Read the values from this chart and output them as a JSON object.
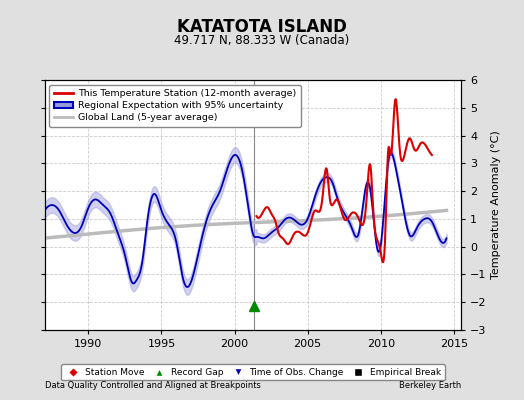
{
  "title": "KATATOTA ISLAND",
  "subtitle": "49.717 N, 88.333 W (Canada)",
  "ylabel": "Temperature Anomaly (°C)",
  "xlabel_left": "Data Quality Controlled and Aligned at Breakpoints",
  "xlabel_right": "Berkeley Earth",
  "ylim": [
    -3,
    6
  ],
  "xlim": [
    1987.0,
    2015.5
  ],
  "yticks": [
    -3,
    -2,
    -1,
    0,
    1,
    2,
    3,
    4,
    5,
    6
  ],
  "xticks": [
    1990,
    1995,
    2000,
    2005,
    2010,
    2015
  ],
  "bg_color": "#e0e0e0",
  "plot_bg_color": "#ffffff",
  "grid_color": "#cccccc",
  "blue_line_color": "#0000bb",
  "blue_fill_color": "#9999dd",
  "red_line_color": "#dd0000",
  "gray_line_color": "#bbbbbb",
  "vertical_line_x": 2001.3,
  "record_gap_x": 2001.3,
  "record_gap_y": -2.15,
  "legend_items": [
    {
      "label": "This Temperature Station (12-month average)",
      "color": "#dd0000",
      "type": "line"
    },
    {
      "label": "Regional Expectation with 95% uncertainty",
      "color": "#0000bb",
      "type": "fill"
    },
    {
      "label": "Global Land (5-year average)",
      "color": "#bbbbbb",
      "type": "line"
    }
  ],
  "bottom_legend": [
    {
      "label": "Station Move",
      "marker": "D",
      "color": "#dd0000"
    },
    {
      "label": "Record Gap",
      "marker": "^",
      "color": "#008800"
    },
    {
      "label": "Time of Obs. Change",
      "marker": "v",
      "color": "#0000bb"
    },
    {
      "label": "Empirical Break",
      "marker": "s",
      "color": "#000000"
    }
  ]
}
